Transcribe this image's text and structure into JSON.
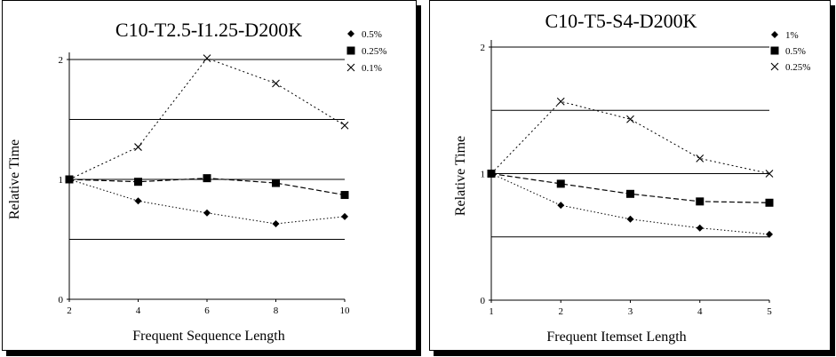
{
  "chart_data": [
    {
      "type": "line",
      "title": "C10-T2.5-I1.25-D200K",
      "xlabel": "Frequent Sequence Length",
      "ylabel": "Relative Time",
      "x": [
        2,
        4,
        6,
        8,
        10
      ],
      "xlim": [
        2,
        10
      ],
      "ylim": [
        0,
        2
      ],
      "xticks": [
        "2",
        "4",
        "6",
        "8",
        "10"
      ],
      "yticks": [
        "0",
        "1",
        "2"
      ],
      "grid": "horizontal",
      "legend_position": "top-right",
      "series": [
        {
          "name": "0.5%",
          "marker": "diamond",
          "values": [
            1.0,
            0.82,
            0.72,
            0.63,
            0.69
          ]
        },
        {
          "name": "0.25%",
          "marker": "square",
          "values": [
            1.0,
            0.98,
            1.01,
            0.97,
            0.87
          ]
        },
        {
          "name": "0.1%",
          "marker": "x",
          "values": [
            1.0,
            1.27,
            2.01,
            1.8,
            1.45
          ]
        }
      ]
    },
    {
      "type": "line",
      "title": "C10-T5-S4-D200K",
      "xlabel": "Frequent Itemset Length",
      "ylabel": "Relative Time",
      "x": [
        1,
        2,
        3,
        4,
        5
      ],
      "xlim": [
        1,
        5
      ],
      "ylim": [
        0,
        2
      ],
      "xticks": [
        "1",
        "2",
        "3",
        "4",
        "5"
      ],
      "yticks": [
        "0",
        "1",
        "2"
      ],
      "grid": "horizontal",
      "legend_position": "top-right",
      "series": [
        {
          "name": "1%",
          "marker": "diamond",
          "values": [
            1.0,
            0.75,
            0.64,
            0.57,
            0.52
          ]
        },
        {
          "name": "0.5%",
          "marker": "square",
          "values": [
            1.0,
            0.92,
            0.84,
            0.78,
            0.77
          ]
        },
        {
          "name": "0.25%",
          "marker": "x",
          "values": [
            1.0,
            1.57,
            1.43,
            1.12,
            1.0
          ]
        }
      ]
    }
  ]
}
